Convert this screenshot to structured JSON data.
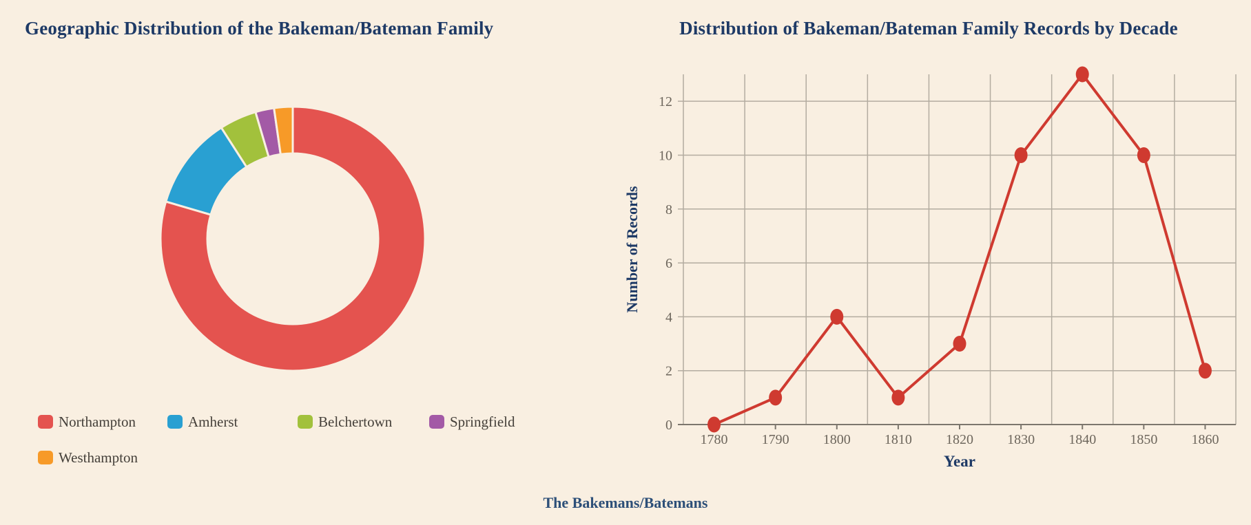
{
  "page": {
    "background": "#f9efe1",
    "footer": "The Bakemans/Batemans"
  },
  "chart_data": [
    {
      "type": "pie",
      "variant": "doughnut",
      "title": "Geographic Distribution of the Bakeman/Bateman Family",
      "labels": [
        "Northampton",
        "Amherst",
        "Belchertown",
        "Springfield",
        "Westhampton"
      ],
      "values": [
        35,
        5,
        2,
        1,
        1
      ],
      "colors": [
        "#e4534f",
        "#29a0d2",
        "#a2c13c",
        "#a35aa6",
        "#f79a28"
      ],
      "legend_position": "bottom-left, two rows",
      "start_angle": "top, clockwise"
    },
    {
      "type": "line",
      "title": "Distribution of Bakeman/Bateman Family Records by Decade",
      "x": [
        "1780",
        "1790",
        "1800",
        "1810",
        "1820",
        "1830",
        "1840",
        "1850",
        "1860"
      ],
      "values": [
        0,
        1,
        4,
        1,
        3,
        10,
        13,
        10,
        2
      ],
      "xlabel": "Year",
      "ylabel": "Number of Records",
      "ylim": [
        0,
        13
      ],
      "yticks": [
        0,
        2,
        4,
        6,
        8,
        10,
        12
      ],
      "grid": true,
      "line_color": "#cf3a30",
      "marker": "filled-circle",
      "grid_color": "#b3aca0",
      "axis_color": "#7c766d",
      "tick_label_color": "#6d665c",
      "axis_title_color": "#1e3a66"
    }
  ]
}
